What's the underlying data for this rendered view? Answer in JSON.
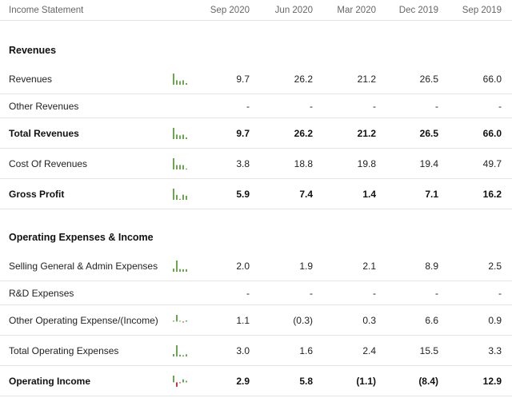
{
  "header": {
    "title": "Income Statement",
    "periods": [
      "Sep 2020",
      "Jun 2020",
      "Mar 2020",
      "Dec 2019",
      "Sep 2019"
    ]
  },
  "sections": [
    {
      "title": "Revenues",
      "rows": [
        {
          "label": "Revenues",
          "bold": false,
          "has_chart": true,
          "values": [
            "9.7",
            "26.2",
            "21.2",
            "26.5",
            "66.0"
          ],
          "chart": [
            9.7,
            26.2,
            21.2,
            26.5,
            66.0
          ]
        },
        {
          "label": "Other Revenues",
          "bold": false,
          "has_chart": false,
          "values": [
            "-",
            "-",
            "-",
            "-",
            "-"
          ],
          "chart": []
        },
        {
          "label": "Total Revenues",
          "bold": true,
          "has_chart": true,
          "values": [
            "9.7",
            "26.2",
            "21.2",
            "26.5",
            "66.0"
          ],
          "chart": [
            9.7,
            26.2,
            21.2,
            26.5,
            66.0
          ]
        },
        {
          "label": "Cost Of Revenues",
          "bold": false,
          "has_chart": true,
          "values": [
            "3.8",
            "18.8",
            "19.8",
            "19.4",
            "49.7"
          ],
          "chart": [
            3.8,
            18.8,
            19.8,
            19.4,
            49.7
          ]
        },
        {
          "label": "Gross Profit",
          "bold": true,
          "has_chart": true,
          "values": [
            "5.9",
            "7.4",
            "1.4",
            "7.1",
            "16.2"
          ],
          "chart": [
            5.9,
            7.4,
            1.4,
            7.1,
            16.2
          ]
        }
      ]
    },
    {
      "title": "Operating Expenses & Income",
      "rows": [
        {
          "label": "Selling General & Admin Expenses",
          "bold": false,
          "has_chart": true,
          "values": [
            "2.0",
            "1.9",
            "2.1",
            "8.9",
            "2.5"
          ],
          "chart": [
            2.0,
            1.9,
            2.1,
            8.9,
            2.5
          ]
        },
        {
          "label": "R&D Expenses",
          "bold": false,
          "has_chart": false,
          "values": [
            "-",
            "-",
            "-",
            "-",
            "-"
          ],
          "chart": []
        },
        {
          "label": "Other Operating Expense/(Income)",
          "bold": false,
          "has_chart": true,
          "values": [
            "1.1",
            "(0.3)",
            "0.3",
            "6.6",
            "0.9"
          ],
          "chart": [
            1.1,
            -0.3,
            0.3,
            6.6,
            0.9
          ]
        },
        {
          "label": "Total Operating Expenses",
          "bold": false,
          "has_chart": true,
          "values": [
            "3.0",
            "1.6",
            "2.4",
            "15.5",
            "3.3"
          ],
          "chart": [
            3.0,
            1.6,
            2.4,
            15.5,
            3.3
          ]
        },
        {
          "label": "Operating Income",
          "bold": true,
          "has_chart": true,
          "values": [
            "2.9",
            "5.8",
            "(1.1)",
            "(8.4)",
            "12.9"
          ],
          "chart": [
            2.9,
            5.8,
            -1.1,
            -8.4,
            12.9
          ]
        }
      ]
    }
  ],
  "colors": {
    "positive_bar": "#6aa84f",
    "negative_bar": "#cc3333",
    "divider": "#e4e4e4"
  }
}
